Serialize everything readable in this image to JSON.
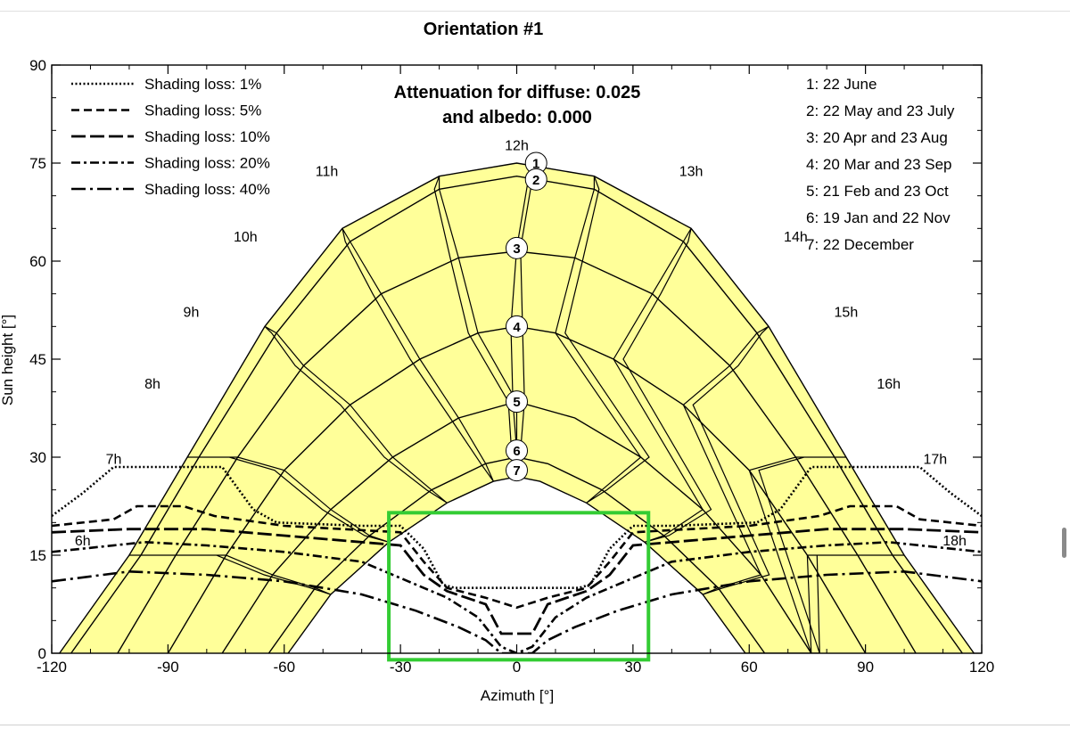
{
  "chart_data": {
    "type": "line",
    "title": "Orientation #1",
    "xlabel": "Azimuth [°]",
    "ylabel": "Sun height [°]",
    "xlim": [
      -120,
      120
    ],
    "ylim": [
      0,
      90
    ],
    "xticks": [
      -120,
      -90,
      -60,
      -30,
      0,
      30,
      60,
      90,
      120
    ],
    "yticks": [
      0,
      15,
      30,
      45,
      60,
      75,
      90
    ],
    "annotation": [
      "Attenuation for diffuse: 0.025",
      "and albedo: 0.000"
    ],
    "legend_shading": [
      {
        "label": "Shading loss: 1%"
      },
      {
        "label": "Shading loss: 5%"
      },
      {
        "label": "Shading loss: 10%"
      },
      {
        "label": "Shading loss: 20%"
      },
      {
        "label": "Shading loss: 40%"
      }
    ],
    "legend_dates": [
      "1: 22 June",
      "2: 22 May and 23 July",
      "3: 20 Apr and 23 Aug",
      "4: 20 Mar and 23 Sep",
      "5: 21 Feb and 23 Oct",
      "6: 19 Jan and 22 Nov",
      "7: 22 December"
    ],
    "sun_paths": [
      {
        "label": "1",
        "points": [
          [
            -118,
            0
          ],
          [
            -100,
            15
          ],
          [
            -85,
            30
          ],
          [
            -65,
            50
          ],
          [
            -45,
            65
          ],
          [
            -20,
            73
          ],
          [
            0,
            75
          ],
          [
            20,
            73
          ],
          [
            45,
            65
          ],
          [
            65,
            50
          ],
          [
            85,
            30
          ],
          [
            100,
            15
          ],
          [
            118,
            0
          ]
        ]
      },
      {
        "label": "2",
        "points": [
          [
            -115,
            0
          ],
          [
            -97,
            15
          ],
          [
            -82,
            30
          ],
          [
            -62,
            49
          ],
          [
            -43,
            63
          ],
          [
            -20,
            71
          ],
          [
            0,
            73
          ],
          [
            20,
            71
          ],
          [
            43,
            63
          ],
          [
            62,
            49
          ],
          [
            82,
            30
          ],
          [
            97,
            15
          ],
          [
            115,
            0
          ]
        ]
      },
      {
        "label": "3",
        "points": [
          [
            -103,
            0
          ],
          [
            -88,
            15
          ],
          [
            -72,
            30
          ],
          [
            -55,
            44
          ],
          [
            -35,
            55
          ],
          [
            -15,
            60.5
          ],
          [
            0,
            61.5
          ],
          [
            15,
            60.5
          ],
          [
            35,
            55
          ],
          [
            55,
            44
          ],
          [
            72,
            30
          ],
          [
            88,
            15
          ],
          [
            103,
            0
          ]
        ]
      },
      {
        "label": "4",
        "points": [
          [
            -90,
            0
          ],
          [
            -75,
            15
          ],
          [
            -60,
            28
          ],
          [
            -43,
            38
          ],
          [
            -25,
            45
          ],
          [
            -10,
            49
          ],
          [
            0,
            50
          ],
          [
            10,
            49
          ],
          [
            25,
            45
          ],
          [
            43,
            38
          ],
          [
            60,
            28
          ],
          [
            75,
            15
          ],
          [
            90,
            0
          ]
        ]
      },
      {
        "label": "5",
        "points": [
          [
            -76,
            0
          ],
          [
            -63,
            12
          ],
          [
            -48,
            22
          ],
          [
            -32,
            30
          ],
          [
            -15,
            36
          ],
          [
            0,
            38.5
          ],
          [
            15,
            36
          ],
          [
            32,
            30
          ],
          [
            48,
            22
          ],
          [
            63,
            12
          ],
          [
            76,
            0
          ]
        ]
      },
      {
        "label": "6",
        "points": [
          [
            -64,
            0
          ],
          [
            -52,
            10
          ],
          [
            -38,
            18
          ],
          [
            -22,
            25
          ],
          [
            -8,
            29
          ],
          [
            0,
            30
          ],
          [
            8,
            29
          ],
          [
            22,
            25
          ],
          [
            38,
            18
          ],
          [
            52,
            10
          ],
          [
            64,
            0
          ]
        ]
      },
      {
        "label": "7",
        "points": [
          [
            -59,
            0
          ],
          [
            -48,
            9
          ],
          [
            -33,
            17
          ],
          [
            -18,
            23
          ],
          [
            -6,
            26.3
          ],
          [
            0,
            27
          ],
          [
            6,
            26.3
          ],
          [
            18,
            23
          ],
          [
            33,
            17
          ],
          [
            48,
            9
          ],
          [
            59,
            0
          ]
        ]
      }
    ],
    "date_markers": [
      {
        "label": "1",
        "x": 5,
        "y": 75
      },
      {
        "label": "2",
        "x": 5,
        "y": 72.5
      },
      {
        "label": "3",
        "x": 0,
        "y": 62
      },
      {
        "label": "4",
        "x": 0,
        "y": 50
      },
      {
        "label": "5",
        "x": 0,
        "y": 38.5
      },
      {
        "label": "6",
        "x": 0,
        "y": 31
      },
      {
        "label": "7",
        "x": 0,
        "y": 28
      }
    ],
    "hour_labels": [
      {
        "label": "6h",
        "x": -112,
        "y": 16.5
      },
      {
        "label": "7h",
        "x": -104,
        "y": 29
      },
      {
        "label": "8h",
        "x": -94,
        "y": 40.5
      },
      {
        "label": "9h",
        "x": -84,
        "y": 51.5
      },
      {
        "label": "10h",
        "x": -70,
        "y": 63
      },
      {
        "label": "11h",
        "x": -49,
        "y": 73
      },
      {
        "label": "12h",
        "x": 0,
        "y": 77
      },
      {
        "label": "13h",
        "x": 45,
        "y": 73
      },
      {
        "label": "14h",
        "x": 72,
        "y": 63
      },
      {
        "label": "15h",
        "x": 85,
        "y": 51.5
      },
      {
        "label": "16h",
        "x": 96,
        "y": 40.5
      },
      {
        "label": "17h",
        "x": 108,
        "y": 29
      },
      {
        "label": "18h",
        "x": 113,
        "y": 16.5
      }
    ],
    "shading_lines": [
      {
        "name": "Shading loss: 1%",
        "points": [
          [
            -120,
            21
          ],
          [
            -112,
            24.5
          ],
          [
            -104,
            28.5
          ],
          [
            -92,
            28.5
          ],
          [
            -76,
            28.5
          ],
          [
            -68,
            22
          ],
          [
            -62,
            20
          ],
          [
            -40,
            19.5
          ],
          [
            -30,
            19.5
          ],
          [
            -24,
            16
          ],
          [
            -19,
            10.5
          ],
          [
            -16,
            10
          ],
          [
            0,
            10
          ],
          [
            16,
            10
          ],
          [
            19,
            10.5
          ],
          [
            24,
            16
          ],
          [
            30,
            19.5
          ],
          [
            40,
            19.5
          ],
          [
            62,
            20
          ],
          [
            68,
            22
          ],
          [
            76,
            28.5
          ],
          [
            92,
            28.5
          ],
          [
            104,
            28.5
          ],
          [
            112,
            24.5
          ],
          [
            120,
            21
          ]
        ]
      },
      {
        "name": "Shading loss: 5%",
        "points": [
          [
            -120,
            19.5
          ],
          [
            -104,
            20.5
          ],
          [
            -98,
            22.5
          ],
          [
            -86,
            22.5
          ],
          [
            -78,
            21
          ],
          [
            -60,
            19.5
          ],
          [
            -30,
            18.5
          ],
          [
            -24,
            14
          ],
          [
            -18,
            10
          ],
          [
            -8,
            8.5
          ],
          [
            0,
            7
          ],
          [
            8,
            8.5
          ],
          [
            18,
            10
          ],
          [
            24,
            14
          ],
          [
            30,
            18.5
          ],
          [
            60,
            19.5
          ],
          [
            78,
            21
          ],
          [
            86,
            22.5
          ],
          [
            98,
            22.5
          ],
          [
            104,
            20.5
          ],
          [
            120,
            19.5
          ]
        ]
      },
      {
        "name": "Shading loss: 10%",
        "points": [
          [
            -120,
            18.5
          ],
          [
            -100,
            19
          ],
          [
            -80,
            19
          ],
          [
            -60,
            18
          ],
          [
            -30,
            16.5
          ],
          [
            -24,
            12
          ],
          [
            -18,
            9.5
          ],
          [
            -8,
            7.5
          ],
          [
            -4,
            3
          ],
          [
            0,
            3
          ],
          [
            4,
            3
          ],
          [
            8,
            7.5
          ],
          [
            18,
            9.5
          ],
          [
            24,
            12
          ],
          [
            30,
            16.5
          ],
          [
            60,
            18
          ],
          [
            80,
            19
          ],
          [
            100,
            19
          ],
          [
            120,
            18.5
          ]
        ]
      },
      {
        "name": "Shading loss: 20%",
        "points": [
          [
            -120,
            15.5
          ],
          [
            -96,
            17
          ],
          [
            -80,
            16.5
          ],
          [
            -60,
            15.5
          ],
          [
            -40,
            14
          ],
          [
            -28,
            11
          ],
          [
            -18,
            8.5
          ],
          [
            -10,
            5.5
          ],
          [
            -4,
            1
          ],
          [
            0,
            0
          ],
          [
            4,
            1
          ],
          [
            10,
            5.5
          ],
          [
            18,
            8.5
          ],
          [
            28,
            11
          ],
          [
            40,
            14
          ],
          [
            60,
            15.5
          ],
          [
            80,
            16.5
          ],
          [
            96,
            17
          ],
          [
            120,
            15.5
          ]
        ]
      },
      {
        "name": "Shading loss: 40%",
        "points": [
          [
            -120,
            11
          ],
          [
            -100,
            12.5
          ],
          [
            -80,
            12
          ],
          [
            -60,
            11
          ],
          [
            -40,
            9
          ],
          [
            -26,
            6.5
          ],
          [
            -15,
            4
          ],
          [
            -8,
            2
          ],
          [
            -4,
            0
          ],
          [
            4,
            0
          ],
          [
            8,
            2
          ],
          [
            15,
            4
          ],
          [
            26,
            6.5
          ],
          [
            40,
            9
          ],
          [
            60,
            11
          ],
          [
            80,
            12
          ],
          [
            100,
            12.5
          ],
          [
            120,
            11
          ]
        ]
      }
    ],
    "highlight_box": {
      "x0": -33,
      "x1": 34,
      "y0": -1,
      "y1": 21.5
    },
    "colors": {
      "band_fill": "#ffff99",
      "line": "#000000",
      "highlight": "#33cc33"
    },
    "grid": false,
    "legend_placement": "top-left and top-right"
  }
}
